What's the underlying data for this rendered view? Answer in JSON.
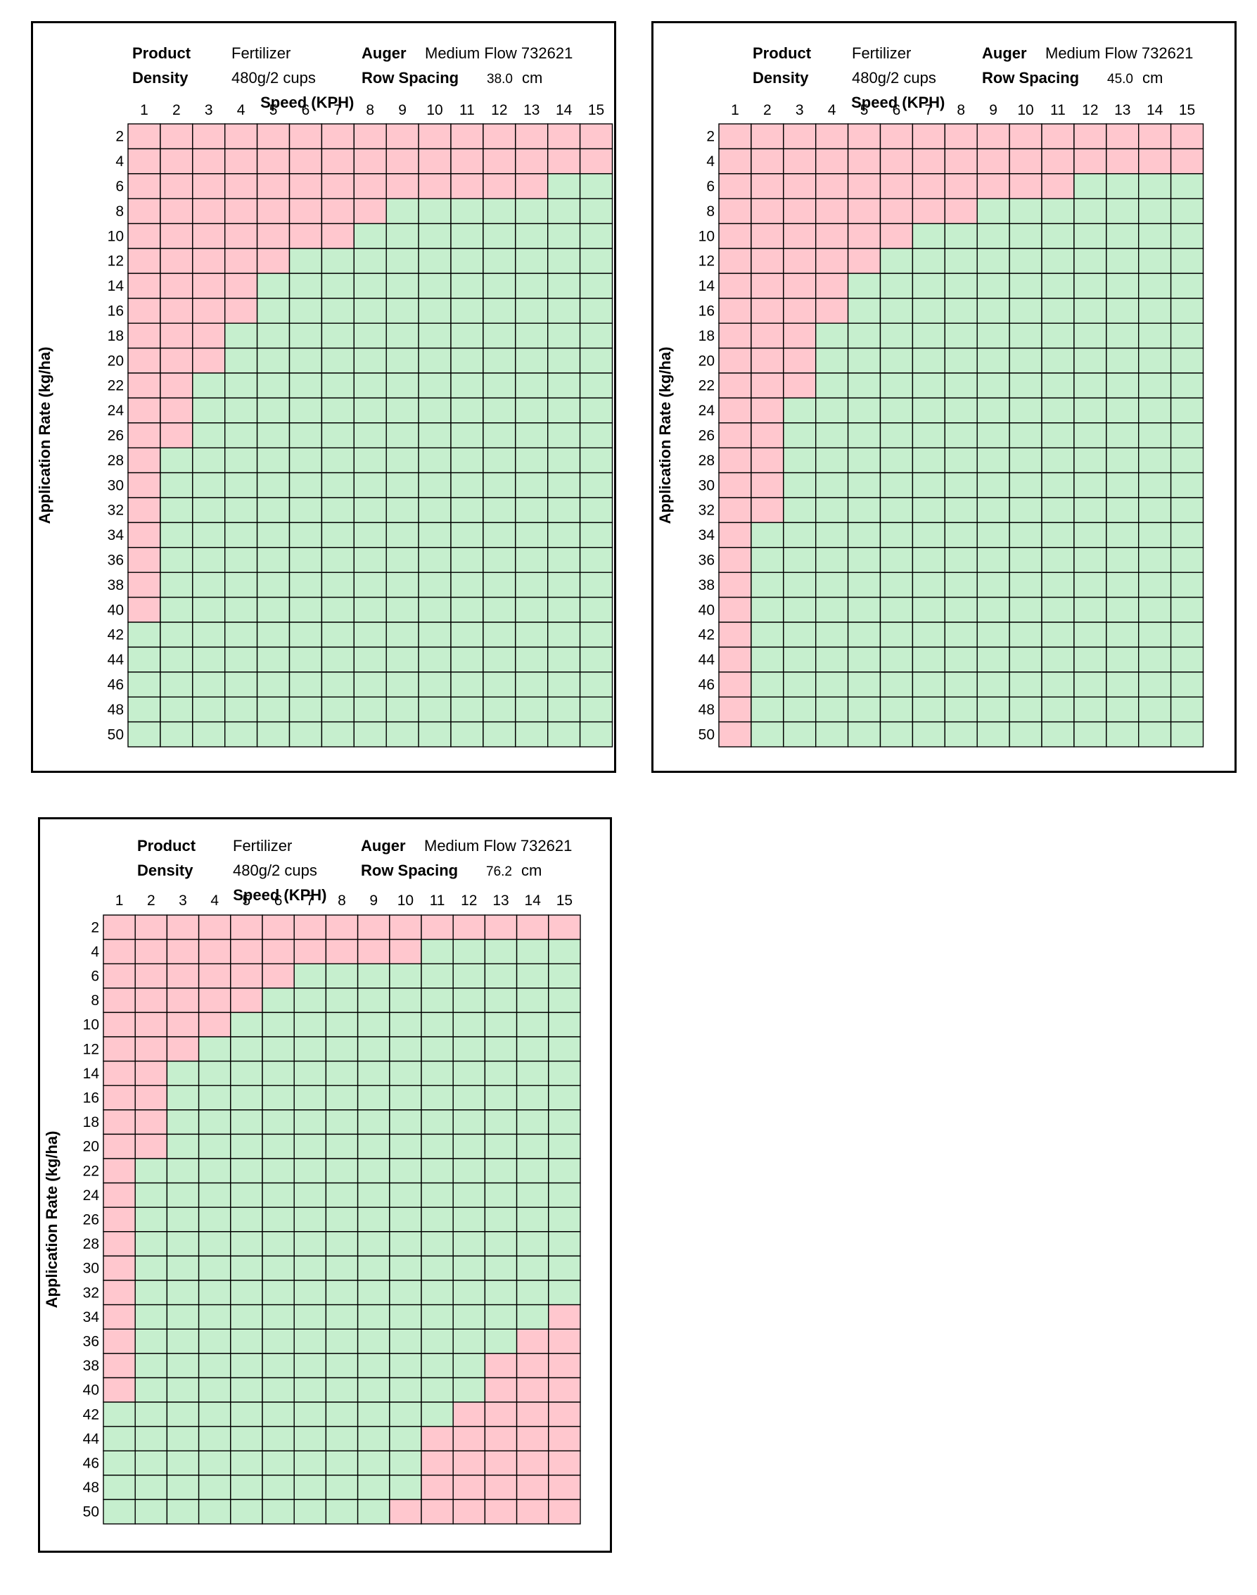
{
  "labels": {
    "product_key": "Product",
    "density_key": "Density",
    "auger_key": "Auger",
    "row_spacing_key": "Row Spacing",
    "xlabel": "Speed (KPH)",
    "ylabel": "Application Rate (kg/ha)"
  },
  "colors": {
    "out_of_range": "#FFC7CE",
    "in_range": "#C6EFCE",
    "grid": "#000000"
  },
  "legend": "none",
  "chart_data": [
    {
      "type": "heatmap",
      "product": "Fertilizer",
      "density": "480g/2 cups",
      "auger": "Medium Flow 732621",
      "row_spacing": "38.0",
      "row_spacing_unit": "cm",
      "xlabel": "Speed (KPH)",
      "ylabel": "Application Rate (kg/ha)",
      "x": [
        1,
        2,
        3,
        4,
        5,
        6,
        7,
        8,
        9,
        10,
        11,
        12,
        13,
        14,
        15
      ],
      "y": [
        2,
        4,
        6,
        8,
        10,
        12,
        14,
        16,
        18,
        20,
        22,
        24,
        26,
        28,
        30,
        32,
        34,
        36,
        38,
        40,
        42,
        44,
        46,
        48,
        50
      ],
      "green_ranges": [
        [
          42,
          50
        ],
        [
          28,
          50
        ],
        [
          22,
          50
        ],
        [
          18,
          50
        ],
        [
          14,
          50
        ],
        [
          12,
          50
        ],
        [
          12,
          50
        ],
        [
          10,
          50
        ],
        [
          8,
          50
        ],
        [
          8,
          50
        ],
        [
          8,
          50
        ],
        [
          8,
          50
        ],
        [
          8,
          50
        ],
        [
          6,
          50
        ],
        [
          6,
          50
        ]
      ]
    },
    {
      "type": "heatmap",
      "product": "Fertilizer",
      "density": "480g/2 cups",
      "auger": "Medium Flow 732621",
      "row_spacing": "45.0",
      "row_spacing_unit": "cm",
      "xlabel": "Speed (KPH)",
      "ylabel": "Application Rate (kg/ha)",
      "x": [
        1,
        2,
        3,
        4,
        5,
        6,
        7,
        8,
        9,
        10,
        11,
        12,
        13,
        14,
        15
      ],
      "y": [
        2,
        4,
        6,
        8,
        10,
        12,
        14,
        16,
        18,
        20,
        22,
        24,
        26,
        28,
        30,
        32,
        34,
        36,
        38,
        40,
        42,
        44,
        46,
        48,
        50
      ],
      "green_ranges": [
        null,
        [
          34,
          50
        ],
        [
          24,
          50
        ],
        [
          18,
          50
        ],
        [
          14,
          50
        ],
        [
          12,
          50
        ],
        [
          10,
          50
        ],
        [
          10,
          50
        ],
        [
          8,
          50
        ],
        [
          8,
          50
        ],
        [
          8,
          50
        ],
        [
          6,
          50
        ],
        [
          6,
          50
        ],
        [
          6,
          50
        ],
        [
          6,
          50
        ]
      ]
    },
    {
      "type": "heatmap",
      "product": "Fertilizer",
      "density": "480g/2 cups",
      "auger": "Medium Flow 732621",
      "row_spacing": "76.2",
      "row_spacing_unit": "cm",
      "xlabel": "Speed (KPH)",
      "ylabel": "Application Rate (kg/ha)",
      "x": [
        1,
        2,
        3,
        4,
        5,
        6,
        7,
        8,
        9,
        10,
        11,
        12,
        13,
        14,
        15
      ],
      "y": [
        2,
        4,
        6,
        8,
        10,
        12,
        14,
        16,
        18,
        20,
        22,
        24,
        26,
        28,
        30,
        32,
        34,
        36,
        38,
        40,
        42,
        44,
        46,
        48,
        50
      ],
      "green_ranges": [
        [
          42,
          50
        ],
        [
          22,
          50
        ],
        [
          14,
          50
        ],
        [
          12,
          50
        ],
        [
          10,
          50
        ],
        [
          8,
          50
        ],
        [
          6,
          50
        ],
        [
          6,
          50
        ],
        [
          6,
          50
        ],
        [
          6,
          48
        ],
        [
          4,
          42
        ],
        [
          4,
          40
        ],
        [
          4,
          36
        ],
        [
          4,
          34
        ],
        [
          4,
          32
        ]
      ]
    }
  ]
}
